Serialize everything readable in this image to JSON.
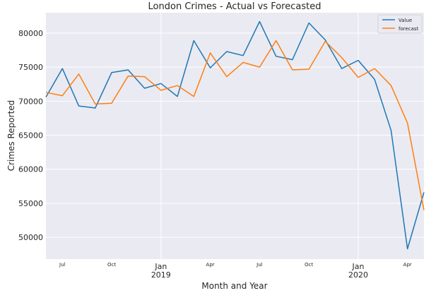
{
  "chart_data": {
    "type": "line",
    "title": "London Crimes - Actual vs Forecasted",
    "xlabel": "Month and Year",
    "ylabel": "Crimes Reported",
    "x": [
      "2018-06",
      "2018-07",
      "2018-08",
      "2018-09",
      "2018-10",
      "2018-11",
      "2018-12",
      "2019-01",
      "2019-02",
      "2019-03",
      "2019-04",
      "2019-05",
      "2019-06",
      "2019-07",
      "2019-08",
      "2019-09",
      "2019-10",
      "2019-11",
      "2019-12",
      "2020-01",
      "2020-02",
      "2020-03",
      "2020-04",
      "2020-05"
    ],
    "x_tick_labels": [
      {
        "at": "2018-07",
        "label": "Jul",
        "sub": ""
      },
      {
        "at": "2018-10",
        "label": "Oct",
        "sub": ""
      },
      {
        "at": "2019-01",
        "label": "Jan",
        "sub": "2019"
      },
      {
        "at": "2019-04",
        "label": "Apr",
        "sub": ""
      },
      {
        "at": "2019-07",
        "label": "Jul",
        "sub": ""
      },
      {
        "at": "2019-10",
        "label": "Oct",
        "sub": ""
      },
      {
        "at": "2020-01",
        "label": "Jan",
        "sub": "2020"
      },
      {
        "at": "2020-04",
        "label": "Apr",
        "sub": ""
      }
    ],
    "y_ticks": [
      50000,
      55000,
      60000,
      65000,
      70000,
      75000,
      80000
    ],
    "ylim": [
      46800,
      83000
    ],
    "grid": true,
    "legend_position": "top-right",
    "series": [
      {
        "name": "Value",
        "color": "#1f77b4",
        "values": [
          70600,
          74800,
          69300,
          69000,
          74200,
          74600,
          71900,
          72600,
          70700,
          78900,
          74900,
          77300,
          76700,
          81700,
          76600,
          76100,
          81500,
          79000,
          74800,
          76000,
          73200,
          65700,
          48300,
          56600
        ]
      },
      {
        "name": "forecast",
        "color": "#ff7f0e",
        "values": [
          71300,
          70800,
          74000,
          69600,
          69700,
          73700,
          73600,
          71600,
          72300,
          70700,
          77100,
          73600,
          75700,
          75000,
          78900,
          74600,
          74700,
          78800,
          76400,
          73500,
          74800,
          72300,
          66800,
          54000
        ]
      }
    ]
  }
}
